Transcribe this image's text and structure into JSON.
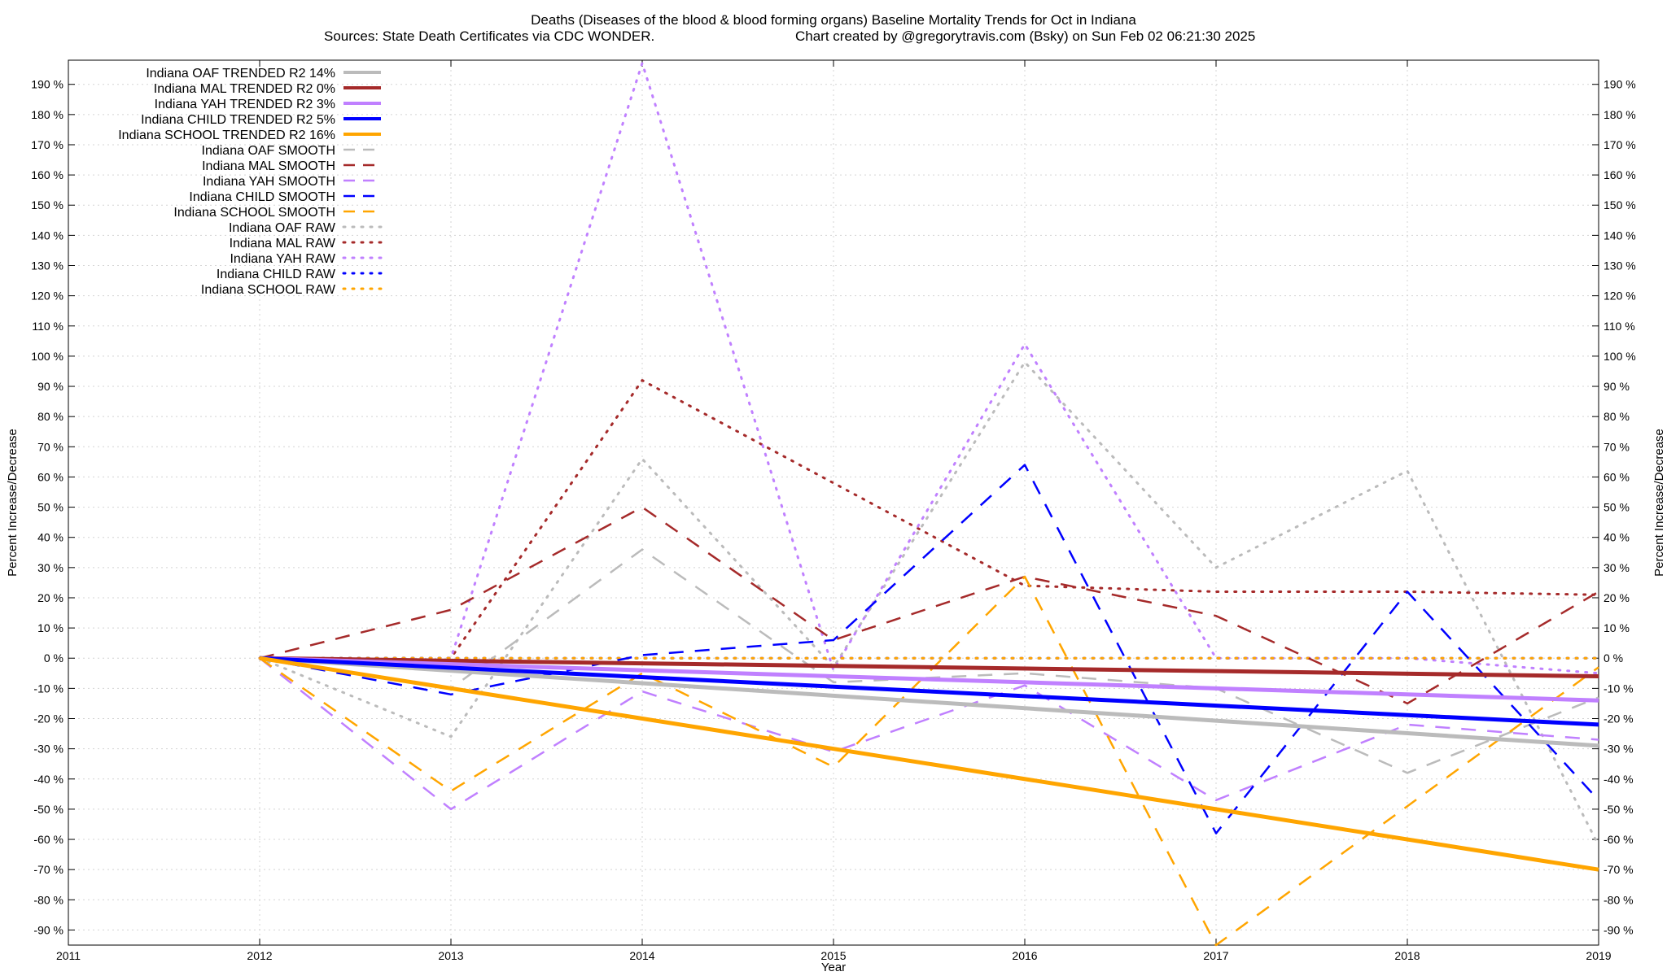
{
  "chart_data": {
    "type": "line",
    "title": "Deaths (Diseases of the blood & blood forming organs)  Baseline Mortality Trends for Oct in Indiana",
    "subtitle_left": "Sources: State Death Certificates via CDC WONDER.",
    "subtitle_right": "Chart created by @gregorytravis.com (Bsky) on Sun Feb 02 06:21:30 2025",
    "xlabel": "Year",
    "ylabel": "Percent Increase/Decrease",
    "ylabel_right": "Percent Increase/Decrease",
    "xlim": [
      2011,
      2019
    ],
    "ylim": [
      -95,
      198
    ],
    "x_ticks": [
      2011,
      2012,
      2013,
      2014,
      2015,
      2016,
      2017,
      2018,
      2019
    ],
    "y_ticks": [
      -90,
      -80,
      -70,
      -60,
      -50,
      -40,
      -30,
      -20,
      -10,
      0,
      10,
      20,
      30,
      40,
      50,
      60,
      70,
      80,
      90,
      100,
      110,
      120,
      130,
      140,
      150,
      160,
      170,
      180,
      190
    ],
    "y_tick_suffix": " %",
    "grid": true,
    "legend_position": "top-left",
    "series": [
      {
        "name": "Indiana OAF TRENDED R2  14%",
        "style": "solid",
        "color": "#bbbbbb",
        "x": [
          2012,
          2019
        ],
        "values": [
          0,
          -29
        ]
      },
      {
        "name": "Indiana MAL TRENDED R2   0%",
        "style": "solid",
        "color": "#a52a2a",
        "x": [
          2012,
          2019
        ],
        "values": [
          0,
          -6
        ]
      },
      {
        "name": "Indiana YAH TRENDED R2   3%",
        "style": "solid",
        "color": "#c080ff",
        "x": [
          2012,
          2019
        ],
        "values": [
          0,
          -14
        ]
      },
      {
        "name": "Indiana CHILD TRENDED R2   5%",
        "style": "solid",
        "color": "#0000ff",
        "x": [
          2012,
          2019
        ],
        "values": [
          0,
          -22
        ]
      },
      {
        "name": "Indiana SCHOOL TRENDED R2  16%",
        "style": "solid",
        "color": "#ffa500",
        "x": [
          2012,
          2019
        ],
        "values": [
          0,
          -70
        ]
      },
      {
        "name": "Indiana OAF SMOOTH",
        "style": "dashed",
        "color": "#bbbbbb",
        "x": [
          2012,
          2013,
          2014,
          2015,
          2016,
          2017,
          2018,
          2019
        ],
        "values": [
          0,
          -10,
          36,
          -8,
          -5,
          -10,
          -38,
          -13
        ]
      },
      {
        "name": "Indiana MAL SMOOTH",
        "style": "dashed",
        "color": "#a52a2a",
        "x": [
          2012,
          2013,
          2014,
          2015,
          2016,
          2017,
          2018,
          2019
        ],
        "values": [
          0,
          16,
          50,
          6,
          27,
          14,
          -15,
          22
        ]
      },
      {
        "name": "Indiana YAH SMOOTH",
        "style": "dashed",
        "color": "#c080ff",
        "x": [
          2012,
          2013,
          2014,
          2015,
          2016,
          2017,
          2018,
          2019
        ],
        "values": [
          0,
          -50,
          -11,
          -31,
          -9,
          -47,
          -22,
          -27
        ]
      },
      {
        "name": "Indiana CHILD SMOOTH",
        "style": "dashed",
        "color": "#0000ff",
        "x": [
          2012,
          2013,
          2014,
          2015,
          2016,
          2017,
          2018,
          2019
        ],
        "values": [
          0,
          -12,
          1,
          6,
          64,
          -58,
          22,
          -47
        ]
      },
      {
        "name": "Indiana SCHOOL SMOOTH",
        "style": "dashed",
        "color": "#ffa500",
        "x": [
          2012,
          2013,
          2014,
          2015,
          2016,
          2017,
          2018,
          2019
        ],
        "values": [
          0,
          -44,
          -5,
          -36,
          27,
          -95,
          -49,
          -3
        ]
      },
      {
        "name": "Indiana OAF RAW",
        "style": "dotted",
        "color": "#bbbbbb",
        "x": [
          2012,
          2013,
          2014,
          2015,
          2016,
          2017,
          2018,
          2019
        ],
        "values": [
          0,
          -26,
          66,
          -3,
          98,
          30,
          62,
          -62
        ]
      },
      {
        "name": "Indiana MAL RAW",
        "style": "dotted",
        "color": "#a52a2a",
        "x": [
          2012,
          2013,
          2014,
          2015,
          2016,
          2017,
          2018,
          2019
        ],
        "values": [
          0,
          0,
          92,
          58,
          24,
          22,
          22,
          21
        ]
      },
      {
        "name": "Indiana YAH RAW",
        "style": "dotted",
        "color": "#c080ff",
        "x": [
          2012,
          2013,
          2014,
          2015,
          2016,
          2017,
          2018,
          2019
        ],
        "values": [
          0,
          0,
          197,
          -4,
          104,
          0,
          0,
          -5
        ]
      },
      {
        "name": "Indiana CHILD RAW",
        "style": "dotted",
        "color": "#0000ff",
        "x": [
          2012,
          2013,
          2014,
          2015,
          2016,
          2017,
          2018,
          2019
        ],
        "values": [
          0,
          0,
          0,
          0,
          0,
          0,
          0,
          0
        ]
      },
      {
        "name": "Indiana SCHOOL RAW",
        "style": "dotted",
        "color": "#ffa500",
        "x": [
          2012,
          2013,
          2014,
          2015,
          2016,
          2017,
          2018,
          2019
        ],
        "values": [
          0,
          0,
          0,
          0,
          0,
          0,
          0,
          0
        ]
      }
    ]
  }
}
